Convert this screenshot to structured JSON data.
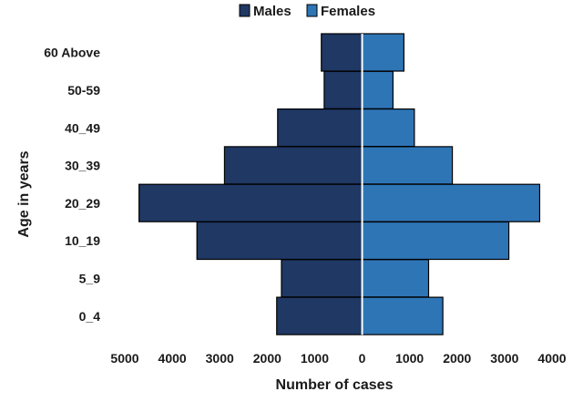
{
  "chart_data": {
    "type": "bar",
    "orientation": "horizontal-pyramid",
    "title": "",
    "xlabel": "Number of cases",
    "ylabel": "Age in years",
    "categories": [
      "60 Above",
      "50-59",
      "40_49",
      "30_39",
      "20_29",
      "10_19",
      "5_9",
      "0_4"
    ],
    "series": [
      {
        "name": "Males",
        "color": "#1f3864",
        "side": "left",
        "values": [
          860,
          800,
          1780,
          2900,
          4700,
          3480,
          1700,
          1800
        ]
      },
      {
        "name": "Females",
        "color": "#2e75b6",
        "side": "right",
        "values": [
          880,
          650,
          1100,
          1900,
          3740,
          3090,
          1400,
          1700
        ]
      }
    ],
    "xlim": [
      -5000,
      4000
    ],
    "xticks": [
      {
        "value": -5000,
        "label": "5000"
      },
      {
        "value": -4000,
        "label": "4000"
      },
      {
        "value": -3000,
        "label": "3000"
      },
      {
        "value": -2000,
        "label": "2000"
      },
      {
        "value": -1000,
        "label": "1000"
      },
      {
        "value": 0,
        "label": "0"
      },
      {
        "value": 1000,
        "label": "1000"
      },
      {
        "value": 2000,
        "label": "2000"
      },
      {
        "value": 3000,
        "label": "3000"
      },
      {
        "value": 4000,
        "label": "4000"
      }
    ],
    "legend": {
      "position": "top",
      "entries": [
        "Males",
        "Females"
      ]
    },
    "grid": false,
    "center_line_color": "#ffffff"
  }
}
